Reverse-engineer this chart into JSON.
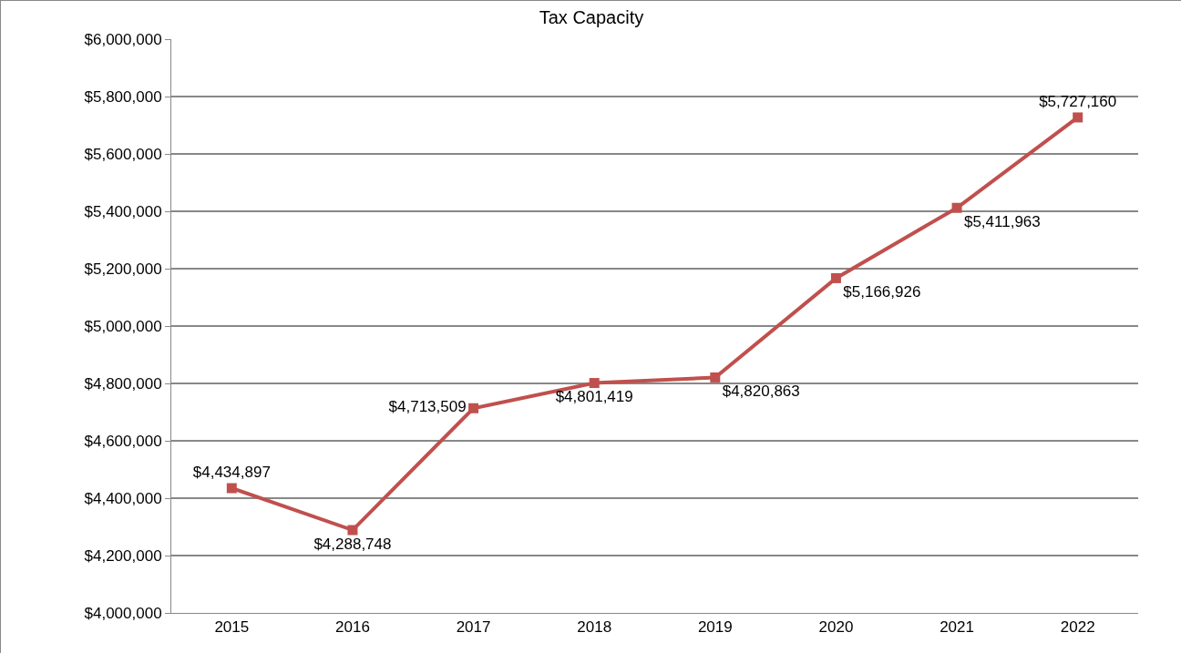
{
  "chart_data": {
    "type": "line",
    "title": "Tax Capacity",
    "categories": [
      "2015",
      "2016",
      "2017",
      "2018",
      "2019",
      "2020",
      "2021",
      "2022"
    ],
    "series": [
      {
        "color": "#c0504d",
        "values": [
          4434897,
          4288748,
          4713509,
          4801419,
          4820863,
          5166926,
          5411963,
          5727160
        ],
        "value_labels": [
          "$4,434,897",
          "$4,288,748",
          "$4,713,509",
          "$4,801,419",
          "$4,820,863",
          "$5,166,926",
          "$5,411,963",
          "$5,727,160"
        ]
      }
    ],
    "ylim": [
      4000000,
      6000000
    ],
    "yticks": [
      {
        "value": 4000000,
        "label": "$4,000,000"
      },
      {
        "value": 4200000,
        "label": "$4,200,000"
      },
      {
        "value": 4400000,
        "label": "$4,400,000"
      },
      {
        "value": 4600000,
        "label": "$4,600,000"
      },
      {
        "value": 4800000,
        "label": "$4,800,000"
      },
      {
        "value": 5000000,
        "label": "$5,000,000"
      },
      {
        "value": 5200000,
        "label": "$5,200,000"
      },
      {
        "value": 5400000,
        "label": "$5,400,000"
      },
      {
        "value": 5600000,
        "label": "$5,600,000"
      },
      {
        "value": 5800000,
        "label": "$5,800,000"
      },
      {
        "value": 6000000,
        "label": "$6,000,000"
      }
    ],
    "grid": "y",
    "legend": false,
    "marker": "square",
    "line_style": "solid"
  }
}
